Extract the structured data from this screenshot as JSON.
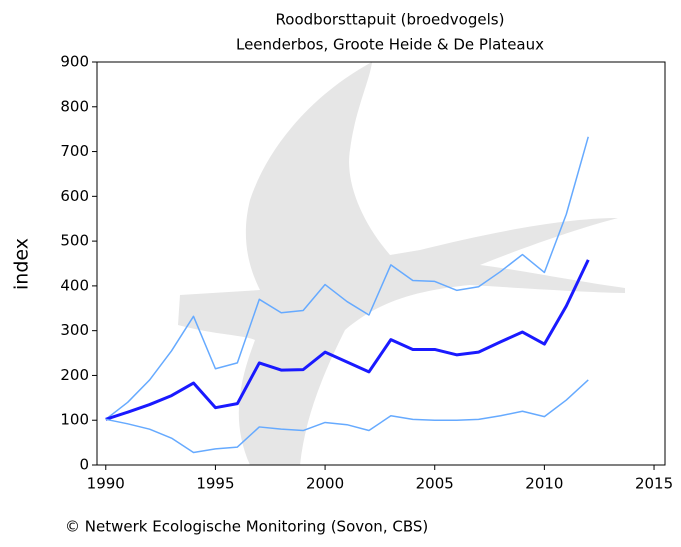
{
  "chart_data": {
    "type": "line",
    "title": "Roodborsttapuit (broedvogels)",
    "subtitle": "Leenderbos, Groote Heide & De Plateaux",
    "ylabel": "index",
    "footer": "© Netwerk Ecologische Monitoring (Sovon, CBS)",
    "x": [
      1990,
      1991,
      1992,
      1993,
      1994,
      1995,
      1996,
      1997,
      1998,
      1999,
      2000,
      2001,
      2002,
      2003,
      2004,
      2005,
      2006,
      2007,
      2008,
      2009,
      2010,
      2011,
      2012
    ],
    "series": [
      {
        "color": "#66aaff",
        "values": [
          102,
          140,
          190,
          255,
          332,
          215,
          228,
          370,
          340,
          345,
          403,
          365,
          335,
          447,
          412,
          410,
          390,
          398,
          432,
          470,
          430,
          560,
          733
        ]
      },
      {
        "color": "#1a1aff",
        "values": [
          102,
          118,
          135,
          155,
          183,
          128,
          137,
          228,
          212,
          213,
          252,
          230,
          208,
          280,
          258,
          258,
          246,
          252,
          275,
          297,
          270,
          355,
          458
        ]
      },
      {
        "color": "#66aaff",
        "values": [
          102,
          92,
          80,
          60,
          28,
          36,
          40,
          85,
          80,
          77,
          95,
          90,
          77,
          110,
          102,
          100,
          100,
          102,
          110,
          120,
          108,
          145,
          190
        ]
      }
    ],
    "xlim": [
      1989.6,
      2015.5
    ],
    "xticks": [
      1990,
      1995,
      2000,
      2005,
      2010,
      2015
    ],
    "ylim": [
      0,
      900
    ],
    "yticks": [
      0,
      100,
      200,
      300,
      400,
      500,
      600,
      700,
      800,
      900
    ]
  }
}
